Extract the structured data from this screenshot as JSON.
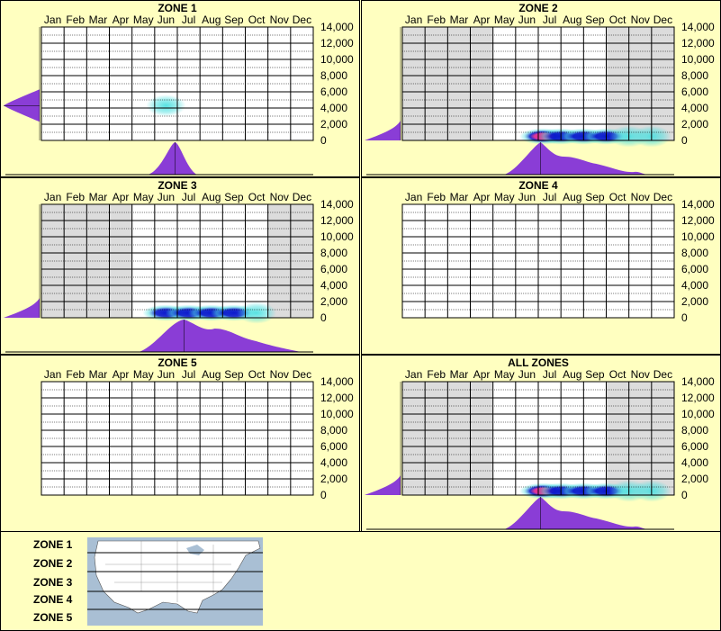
{
  "months": [
    "Jan",
    "Feb",
    "Mar",
    "Apr",
    "May",
    "Jun",
    "Jul",
    "Aug",
    "Sep",
    "Oct",
    "Nov",
    "Dec"
  ],
  "yticks": [
    "14,000",
    "12,000",
    "10,000",
    "8,000",
    "6,000",
    "4,000",
    "2,000",
    "0"
  ],
  "colors": {
    "background": "#ffffc0",
    "shaded_month": "#dcdcdc",
    "density": "#8a3dd6",
    "heat_low": "#4fe0e0",
    "heat_mid": "#0a1acc",
    "heat_high": "#e0208a"
  },
  "chart_data": [
    {
      "type": "heatmap",
      "title": "ZONE 1",
      "xlabel": "",
      "ylabel": "",
      "x_categories": [
        "Jan",
        "Feb",
        "Mar",
        "Apr",
        "May",
        "Jun",
        "Jul",
        "Aug",
        "Sep",
        "Oct",
        "Nov",
        "Dec"
      ],
      "ylim": [
        0,
        14000
      ],
      "shaded_months": [],
      "hotspots": [
        {
          "month": 5.5,
          "elevation": 4300,
          "intensity": "low"
        }
      ],
      "month_density_peak": 5.9,
      "elevation_density_peak": 4300
    },
    {
      "type": "heatmap",
      "title": "ZONE 2",
      "xlabel": "",
      "ylabel": "",
      "x_categories": [
        "Jan",
        "Feb",
        "Mar",
        "Apr",
        "May",
        "Jun",
        "Jul",
        "Aug",
        "Sep",
        "Oct",
        "Nov",
        "Dec"
      ],
      "ylim": [
        0,
        14000
      ],
      "shaded_months": [
        "Jan",
        "Feb",
        "Mar",
        "Apr",
        "Oct",
        "Nov",
        "Dec"
      ],
      "hotspots": [
        {
          "month": 6.2,
          "elevation": 500,
          "intensity": "high"
        },
        {
          "month": 7.0,
          "elevation": 500,
          "intensity": "mid"
        },
        {
          "month": 8.0,
          "elevation": 500,
          "intensity": "mid"
        },
        {
          "month": 9.0,
          "elevation": 500,
          "intensity": "mid"
        },
        {
          "month": 10.0,
          "elevation": 500,
          "intensity": "low"
        },
        {
          "month": 11.0,
          "elevation": 500,
          "intensity": "low"
        }
      ],
      "month_density_peak": 6.1,
      "elevation_density_peak": 0
    },
    {
      "type": "heatmap",
      "title": "ZONE 3",
      "xlabel": "",
      "ylabel": "",
      "x_categories": [
        "Jan",
        "Feb",
        "Mar",
        "Apr",
        "May",
        "Jun",
        "Jul",
        "Aug",
        "Sep",
        "Oct",
        "Nov",
        "Dec"
      ],
      "ylim": [
        0,
        14000
      ],
      "shaded_months": [
        "Jan",
        "Feb",
        "Mar",
        "Apr",
        "Nov",
        "Dec"
      ],
      "hotspots": [
        {
          "month": 5.5,
          "elevation": 600,
          "intensity": "mid"
        },
        {
          "month": 6.5,
          "elevation": 600,
          "intensity": "mid"
        },
        {
          "month": 7.5,
          "elevation": 600,
          "intensity": "mid"
        },
        {
          "month": 8.5,
          "elevation": 600,
          "intensity": "mid"
        },
        {
          "month": 9.5,
          "elevation": 600,
          "intensity": "low"
        }
      ],
      "month_density_peak": 6.3,
      "elevation_density_peak": 0
    },
    {
      "type": "heatmap",
      "title": "ZONE 4",
      "xlabel": "",
      "ylabel": "",
      "x_categories": [
        "Jan",
        "Feb",
        "Mar",
        "Apr",
        "May",
        "Jun",
        "Jul",
        "Aug",
        "Sep",
        "Oct",
        "Nov",
        "Dec"
      ],
      "ylim": [
        0,
        14000
      ],
      "shaded_months": [],
      "hotspots": [],
      "month_density_peak": null,
      "elevation_density_peak": null
    },
    {
      "type": "heatmap",
      "title": "ZONE 5",
      "xlabel": "",
      "ylabel": "",
      "x_categories": [
        "Jan",
        "Feb",
        "Mar",
        "Apr",
        "May",
        "Jun",
        "Jul",
        "Aug",
        "Sep",
        "Oct",
        "Nov",
        "Dec"
      ],
      "ylim": [
        0,
        14000
      ],
      "shaded_months": [],
      "hotspots": [],
      "month_density_peak": null,
      "elevation_density_peak": null
    },
    {
      "type": "heatmap",
      "title": "ALL ZONES",
      "xlabel": "",
      "ylabel": "",
      "x_categories": [
        "Jan",
        "Feb",
        "Mar",
        "Apr",
        "May",
        "Jun",
        "Jul",
        "Aug",
        "Sep",
        "Oct",
        "Nov",
        "Dec"
      ],
      "ylim": [
        0,
        14000
      ],
      "shaded_months": [
        "Jan",
        "Feb",
        "Mar",
        "Apr",
        "Oct",
        "Nov",
        "Dec"
      ],
      "hotspots": [
        {
          "month": 6.2,
          "elevation": 500,
          "intensity": "high"
        },
        {
          "month": 7.0,
          "elevation": 500,
          "intensity": "mid"
        },
        {
          "month": 8.0,
          "elevation": 500,
          "intensity": "mid"
        },
        {
          "month": 9.0,
          "elevation": 500,
          "intensity": "mid"
        },
        {
          "month": 10.0,
          "elevation": 500,
          "intensity": "low"
        },
        {
          "month": 11.0,
          "elevation": 500,
          "intensity": "low"
        }
      ],
      "month_density_peak": 6.1,
      "elevation_density_peak": 0
    }
  ],
  "legend": {
    "zones": [
      "ZONE 1",
      "ZONE 2",
      "ZONE 3",
      "ZONE 4",
      "ZONE 5"
    ]
  }
}
